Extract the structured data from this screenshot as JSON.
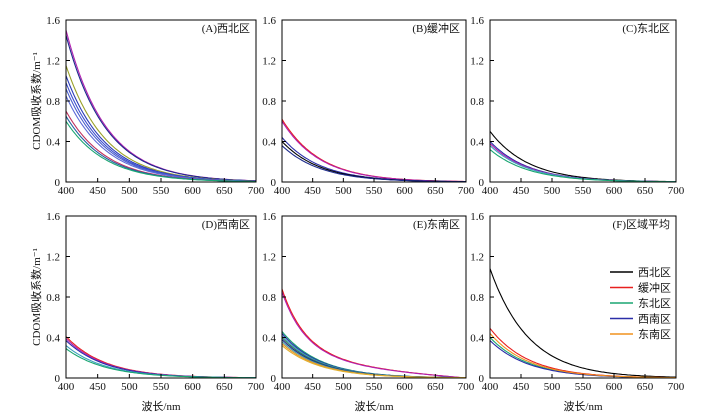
{
  "chart_data": {
    "type": "line",
    "ylabel": "CDOM吸收系数/m⁻¹",
    "xlabel": "波长/nm",
    "xlim": [
      400,
      700
    ],
    "ylim": [
      0,
      1.6
    ],
    "xticks": [
      400,
      450,
      500,
      550,
      600,
      650,
      700
    ],
    "yticks": [
      0,
      0.4,
      0.8,
      1.2,
      1.6
    ],
    "ytick_labels": [
      "0",
      "0.4",
      "0.8",
      "1.2",
      "1.6"
    ],
    "grid": false,
    "legend_position": "right (panel F)",
    "legend": [
      {
        "name": "西北区",
        "color": "#000000"
      },
      {
        "name": "缓冲区",
        "color": "#e8201f"
      },
      {
        "name": "东北区",
        "color": "#1aa672"
      },
      {
        "name": "西南区",
        "color": "#2b2ea8"
      },
      {
        "name": "东南区",
        "color": "#f0921e"
      }
    ],
    "panels": [
      {
        "title": "(A)西北区",
        "series": [
          {
            "a400": 1.5,
            "color": "#b01fb0"
          },
          {
            "a400": 1.45,
            "color": "#1c2a8c"
          },
          {
            "a400": 1.15,
            "color": "#9aa028"
          },
          {
            "a400": 1.05,
            "color": "#2b3bb8"
          },
          {
            "a400": 0.98,
            "color": "#3d4fd0"
          },
          {
            "a400": 0.92,
            "color": "#4a5fcc"
          },
          {
            "a400": 0.85,
            "color": "#5c6ad8"
          },
          {
            "a400": 0.7,
            "color": "#c03060"
          },
          {
            "a400": 0.65,
            "color": "#2060a0"
          },
          {
            "a400": 0.6,
            "color": "#1aa672"
          }
        ]
      },
      {
        "title": "(B)缓冲区",
        "series": [
          {
            "a400": 0.62,
            "color": "#e8201f"
          },
          {
            "a400": 0.6,
            "color": "#b01fb0"
          },
          {
            "a400": 0.44,
            "color": "#2b2ea8"
          },
          {
            "a400": 0.4,
            "color": "#000000"
          },
          {
            "a400": 0.36,
            "color": "#1c2a8c"
          }
        ]
      },
      {
        "title": "(C)东北区",
        "series": [
          {
            "a400": 0.5,
            "color": "#000000"
          },
          {
            "a400": 0.4,
            "color": "#2b2ea8"
          },
          {
            "a400": 0.38,
            "color": "#b01fb0"
          },
          {
            "a400": 0.36,
            "color": "#3da0c0"
          },
          {
            "a400": 0.32,
            "color": "#1aa672"
          }
        ]
      },
      {
        "title": "(D)西南区",
        "series": [
          {
            "a400": 0.41,
            "color": "#e8201f"
          },
          {
            "a400": 0.39,
            "color": "#b01fb0"
          },
          {
            "a400": 0.37,
            "color": "#2b2ea8"
          },
          {
            "a400": 0.32,
            "color": "#3da0c0"
          },
          {
            "a400": 0.29,
            "color": "#1aa672"
          }
        ]
      },
      {
        "title": "(E)东南区",
        "series": [
          {
            "a400": 0.88,
            "color": "#e8201f",
            "shape": "shoulder"
          },
          {
            "a400": 0.85,
            "color": "#b01fb0",
            "shape": "shoulder"
          },
          {
            "a400": 0.46,
            "color": "#1aa672"
          },
          {
            "a400": 0.44,
            "color": "#2b2ea8"
          },
          {
            "a400": 0.42,
            "color": "#3da0c0"
          },
          {
            "a400": 0.4,
            "color": "#2e7a5a"
          },
          {
            "a400": 0.38,
            "color": "#1c2a8c"
          },
          {
            "a400": 0.36,
            "color": "#4aa0a0"
          },
          {
            "a400": 0.34,
            "color": "#f0921e"
          },
          {
            "a400": 0.32,
            "color": "#e0b030"
          }
        ]
      },
      {
        "title": "(F)区域平均",
        "series": [
          {
            "name": "西北区",
            "a400": 1.08,
            "color": "#000000"
          },
          {
            "name": "缓冲区",
            "a400": 0.49,
            "color": "#e8201f"
          },
          {
            "name": "东北区",
            "a400": 0.4,
            "color": "#1aa672"
          },
          {
            "name": "西南区",
            "a400": 0.37,
            "color": "#2b2ea8"
          },
          {
            "name": "东南区",
            "a400": 0.44,
            "color": "#f0921e"
          }
        ]
      }
    ],
    "curve_model": "a(λ) = a400 · exp(-0.016 · (λ − 400))"
  }
}
